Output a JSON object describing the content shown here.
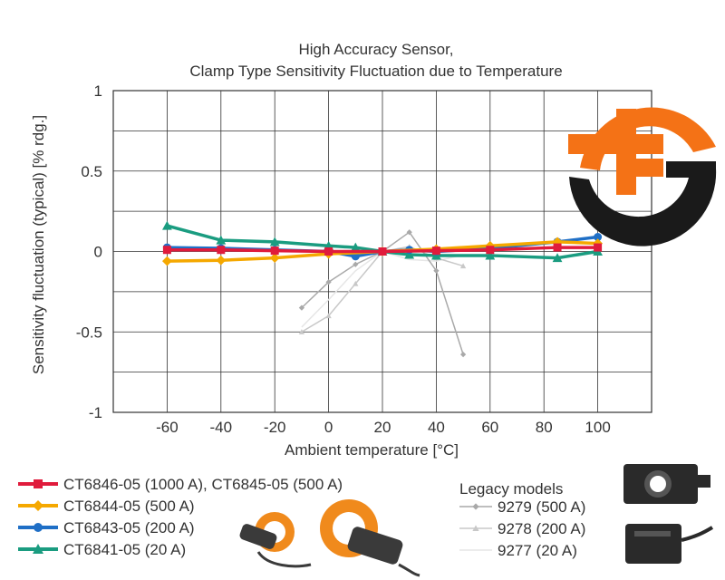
{
  "chart_data": {
    "type": "line",
    "title_line1": "High Accuracy Sensor,",
    "title_line2": "Clamp Type Sensitivity Fluctuation due to Temperature",
    "xlabel": "Ambient temperature [°C]",
    "ylabel": "Sensitivity fluctuation (typical) [% rdg.]",
    "xlim": [
      -80,
      120
    ],
    "ylim": [
      -1,
      1
    ],
    "x_ticks": [
      -60,
      -40,
      -20,
      0,
      20,
      40,
      60,
      80,
      100
    ],
    "x_tick_labels": [
      "-60",
      "-40",
      "-20",
      "0",
      "20",
      "40",
      "60",
      "80",
      "100"
    ],
    "y_ticks": [
      1,
      0.5,
      0,
      -0.5,
      -1
    ],
    "y_tick_labels": [
      "1",
      "0.5",
      "0",
      "-0.5",
      "-1"
    ],
    "grid": true,
    "legacy_heading": "Legacy models",
    "series": [
      {
        "name": "9277 (20 A)",
        "color": "#e6e6e6",
        "marker": "none",
        "width": 1.5,
        "legacy": true,
        "x": [
          -10,
          0,
          10,
          20,
          30,
          40,
          50
        ],
        "y": [
          -0.47,
          -0.3,
          -0.12,
          0.0,
          -0.05,
          -0.06,
          -0.02
        ]
      },
      {
        "name": "9278 (200 A)",
        "color": "#c8c8c8",
        "marker": "triangle",
        "width": 1.5,
        "legacy": true,
        "x": [
          -10,
          0,
          10,
          20,
          30,
          40,
          50
        ],
        "y": [
          -0.5,
          -0.4,
          -0.2,
          0.0,
          0.03,
          -0.04,
          -0.09
        ]
      },
      {
        "name": "9279 (500 A)",
        "color": "#a9a9a9",
        "marker": "diamond",
        "width": 1.5,
        "legacy": true,
        "x": [
          -10,
          0,
          10,
          20,
          30,
          40,
          50
        ],
        "y": [
          -0.35,
          -0.19,
          -0.08,
          0.0,
          0.12,
          -0.12,
          -0.64
        ]
      },
      {
        "name": "CT6841-05 (20 A)",
        "color": "#1a9c80",
        "marker": "triangle",
        "width": 3.5,
        "legacy": false,
        "x": [
          -60,
          -40,
          -20,
          0,
          10,
          20,
          30,
          40,
          60,
          85,
          100
        ],
        "y": [
          0.16,
          0.07,
          0.06,
          0.035,
          0.025,
          0.0,
          -0.02,
          -0.025,
          -0.025,
          -0.04,
          0.0
        ]
      },
      {
        "name": "CT6843-05 (200 A)",
        "color": "#1f6fc6",
        "marker": "circle",
        "width": 3.5,
        "legacy": false,
        "x": [
          -60,
          -40,
          -20,
          0,
          10,
          20,
          30,
          40,
          60,
          85,
          100
        ],
        "y": [
          0.025,
          0.02,
          0.01,
          0.0,
          -0.03,
          0.0,
          0.01,
          0.0,
          0.02,
          0.06,
          0.09
        ]
      },
      {
        "name": "CT6844-05 (500 A)",
        "color": "#f5a800",
        "marker": "diamond",
        "width": 3.5,
        "legacy": false,
        "x": [
          -60,
          -40,
          -20,
          0,
          20,
          40,
          60,
          85,
          100
        ],
        "y": [
          -0.06,
          -0.055,
          -0.04,
          -0.015,
          0.0,
          0.015,
          0.035,
          0.06,
          0.05
        ]
      },
      {
        "name": "CT6846-05 (1000 A), CT6845-05 (500 A)",
        "color": "#e01b3c",
        "marker": "square",
        "width": 3.5,
        "legacy": false,
        "x": [
          -60,
          -40,
          -20,
          0,
          20,
          40,
          60,
          85,
          100
        ],
        "y": [
          0.01,
          0.01,
          0.005,
          0.0,
          0.0,
          0.005,
          0.01,
          0.025,
          0.025
        ]
      }
    ],
    "legend_order": [
      "CT6846-05 (1000 A), CT6845-05 (500 A)",
      "CT6844-05 (500 A)",
      "CT6843-05 (200 A)",
      "CT6841-05 (20 A)",
      "9279 (500 A)",
      "9278 (200 A)",
      "9277 (20 A)"
    ]
  },
  "colors": {
    "logo_orange": "#f47216",
    "logo_dark": "#1a1a1a",
    "grid": "#333333",
    "sensor_body": "#3a3a3a",
    "sensor_clamp": "#f08a1c"
  },
  "icons": {
    "logo": "sf-logo-icon",
    "clamp_sensor_small": "clamp-sensor-icon",
    "clamp_sensor_large": "clamp-sensor-icon",
    "legacy_sensor_top": "legacy-sensor-icon",
    "legacy_sensor_bottom": "legacy-sensor-icon"
  }
}
